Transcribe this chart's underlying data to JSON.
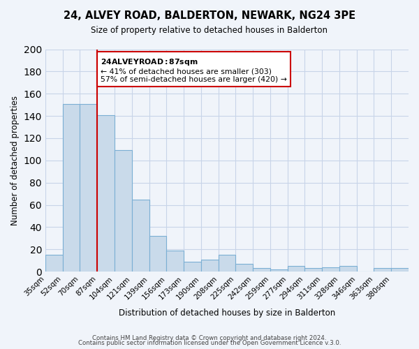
{
  "title": "24, ALVEY ROAD, BALDERTON, NEWARK, NG24 3PE",
  "subtitle": "Size of property relative to detached houses in Balderton",
  "xlabel": "Distribution of detached houses by size in Balderton",
  "ylabel": "Number of detached properties",
  "bin_labels": [
    "35sqm",
    "52sqm",
    "70sqm",
    "87sqm",
    "104sqm",
    "121sqm",
    "139sqm",
    "156sqm",
    "173sqm",
    "190sqm",
    "208sqm",
    "225sqm",
    "242sqm",
    "259sqm",
    "277sqm",
    "294sqm",
    "311sqm",
    "328sqm",
    "346sqm",
    "363sqm",
    "380sqm"
  ],
  "bar_heights": [
    15,
    151,
    151,
    141,
    109,
    65,
    32,
    19,
    9,
    11,
    15,
    7,
    3,
    2,
    5,
    3,
    4,
    5,
    0,
    3,
    3
  ],
  "bar_color": "#c9daea",
  "bar_edge_color": "#7bafd4",
  "red_line_index": 3,
  "annotation_title": "24 ALVEY ROAD: 87sqm",
  "annotation_line1": "← 41% of detached houses are smaller (303)",
  "annotation_line2": "57% of semi-detached houses are larger (420) →",
  "annotation_box_color": "#ffffff",
  "annotation_box_edge": "#cc0000",
  "red_line_color": "#cc0000",
  "ylim": [
    0,
    200
  ],
  "yticks": [
    0,
    20,
    40,
    60,
    80,
    100,
    120,
    140,
    160,
    180,
    200
  ],
  "footer1": "Contains HM Land Registry data © Crown copyright and database right 2024.",
  "footer2": "Contains public sector information licensed under the Open Government Licence v.3.0.",
  "bg_color": "#f0f4fa",
  "grid_color": "#c8d4e8"
}
